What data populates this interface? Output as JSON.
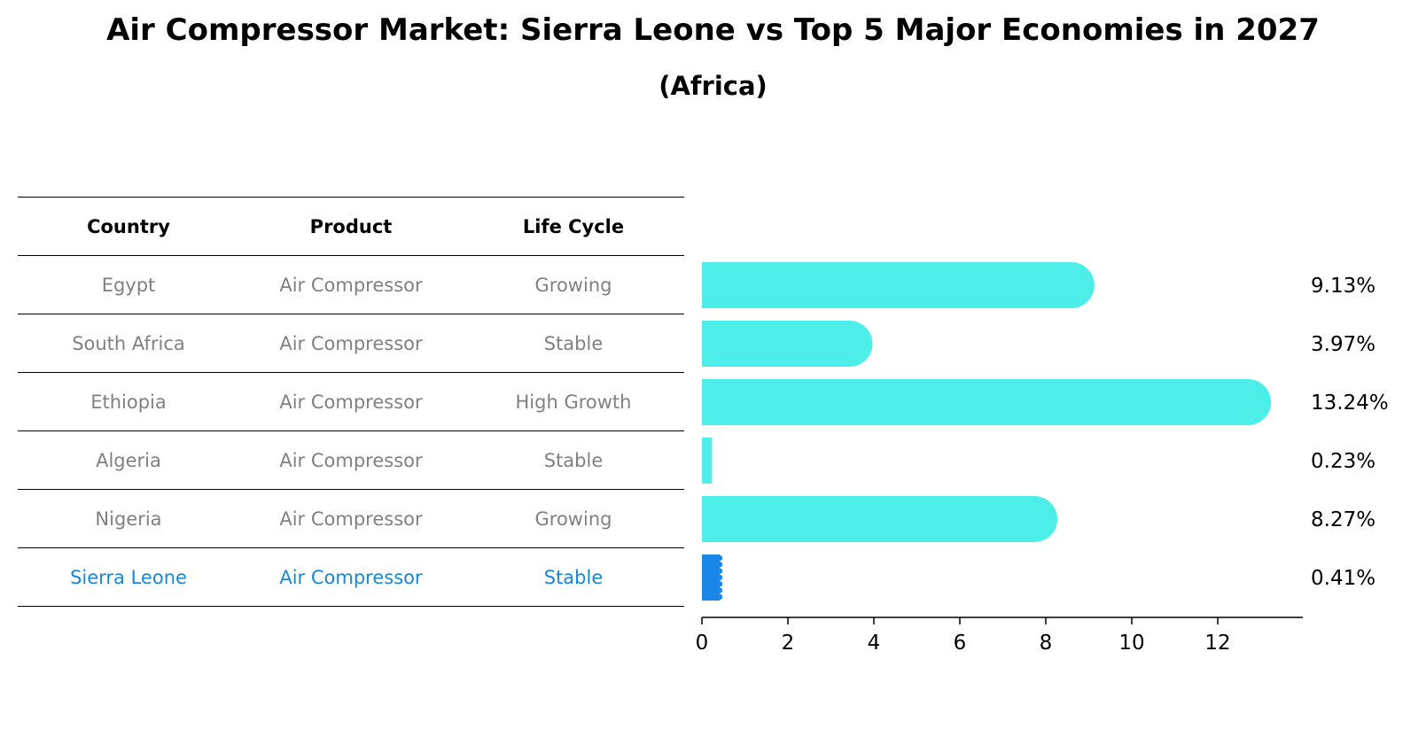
{
  "title": "Air Compressor Market: Sierra Leone vs Top 5 Major Economies in 2027",
  "subtitle": "(Africa)",
  "table": {
    "headers": [
      "Country",
      "Product",
      "Life Cycle"
    ],
    "rows": [
      [
        "Egypt",
        "Air Compressor",
        "Growing"
      ],
      [
        "South Africa",
        "Air Compressor",
        "Stable"
      ],
      [
        "Ethiopia",
        "Air Compressor",
        "High Growth"
      ],
      [
        "Algeria",
        "Air Compressor",
        "Stable"
      ],
      [
        "Nigeria",
        "Air Compressor",
        "Growing"
      ],
      [
        "Sierra Leone",
        "Air Compressor",
        "Stable"
      ]
    ]
  },
  "colors": {
    "bar": "#4deeea",
    "highlight_bar": "#1a86e8",
    "highlight_text": "#1a86d6",
    "text_muted": "#808080"
  },
  "chart_data": {
    "type": "bar",
    "orientation": "horizontal",
    "categories": [
      "Egypt",
      "South Africa",
      "Ethiopia",
      "Algeria",
      "Nigeria",
      "Sierra Leone"
    ],
    "values": [
      9.13,
      3.97,
      13.24,
      0.23,
      8.27,
      0.41
    ],
    "value_labels": [
      "9.13%",
      "3.97%",
      "13.24%",
      "0.23%",
      "8.27%",
      "0.41%"
    ],
    "highlight": "Sierra Leone",
    "xticks": [
      0,
      2,
      4,
      6,
      8,
      10,
      12
    ],
    "xlim": [
      0,
      14
    ],
    "grid": false
  }
}
